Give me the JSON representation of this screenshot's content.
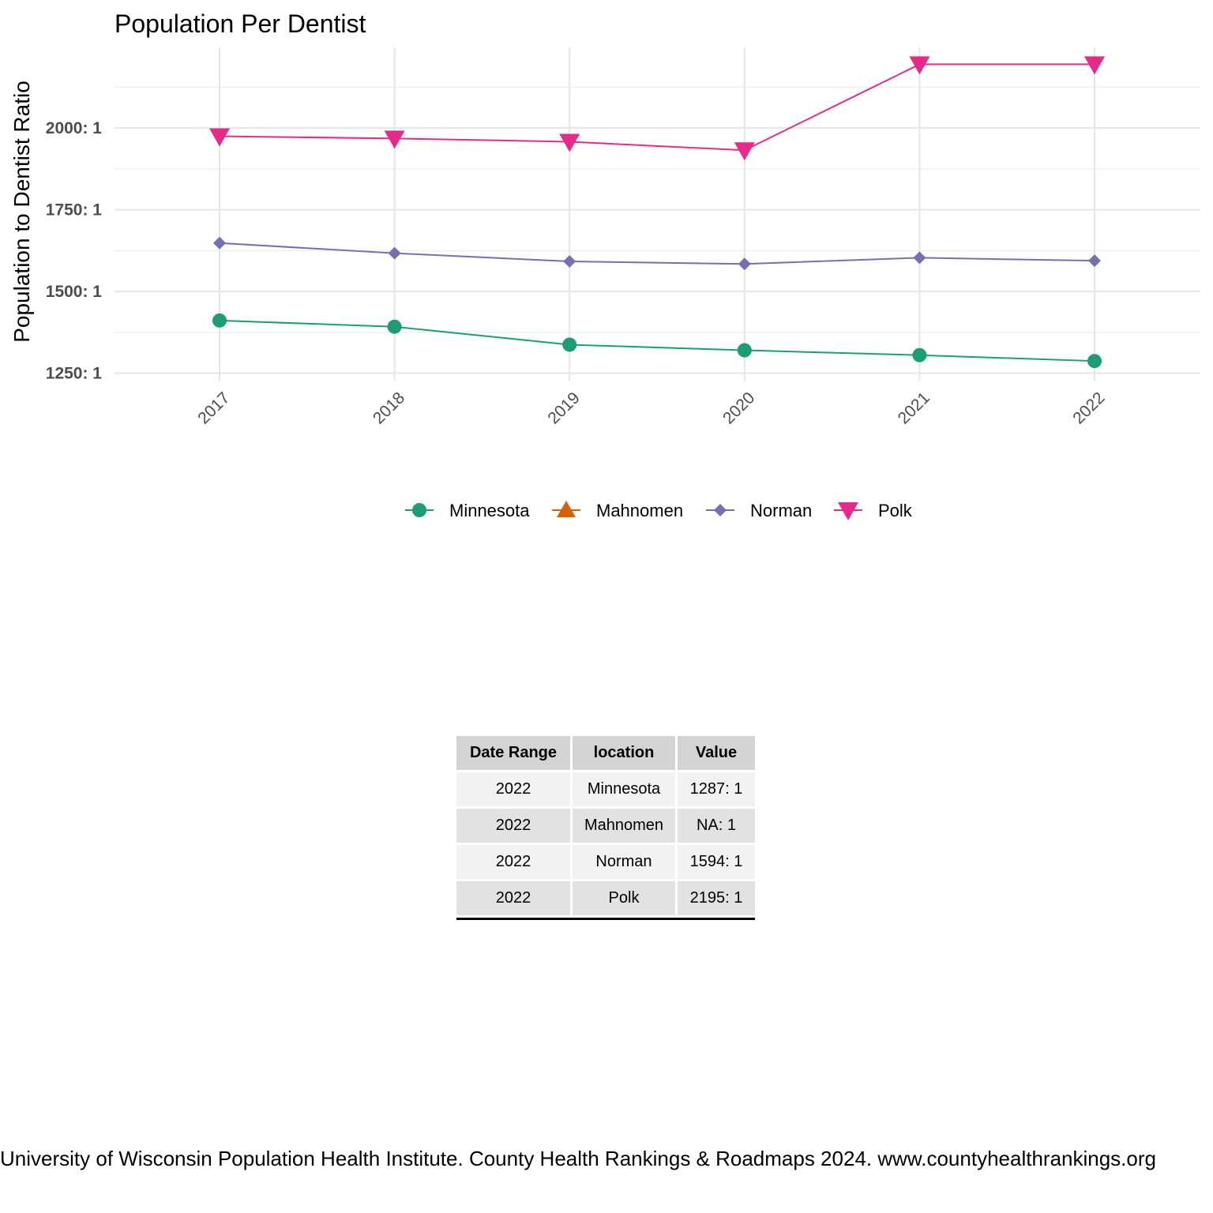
{
  "chart_data": {
    "type": "line",
    "title": "Population Per Dentist",
    "xlabel": "",
    "ylabel": "Population to Dentist Ratio",
    "x": [
      "2017",
      "2018",
      "2019",
      "2020",
      "2021",
      "2022"
    ],
    "yticks": [
      1250,
      1500,
      1750,
      2000
    ],
    "ytick_labels": [
      "1250: 1",
      "1500: 1",
      "1750: 1",
      "2000: 1"
    ],
    "ylim": [
      1240,
      2360
    ],
    "grid": true,
    "legend_position": "bottom",
    "series": [
      {
        "name": "Minnesota",
        "color": "#1b9e77",
        "marker": "circle",
        "values": [
          1411,
          1392,
          1337,
          1320,
          1305,
          1287
        ]
      },
      {
        "name": "Mahnomen",
        "color": "#d95f02",
        "marker": "triangle-up",
        "values": [
          null,
          null,
          null,
          null,
          null,
          null
        ]
      },
      {
        "name": "Norman",
        "color": "#7570b3",
        "marker": "diamond",
        "values": [
          1648,
          1617,
          1592,
          1584,
          1603,
          1594
        ]
      },
      {
        "name": "Polk",
        "color": "#e7298a",
        "marker": "triangle-down",
        "values": [
          1975,
          1968,
          1958,
          1932,
          2195,
          2195
        ]
      }
    ]
  },
  "table": {
    "headers": [
      "Date Range",
      "location",
      "Value"
    ],
    "rows": [
      [
        "2022",
        "Minnesota",
        "1287: 1"
      ],
      [
        "2022",
        "Mahnomen",
        "NA: 1"
      ],
      [
        "2022",
        "Norman",
        "1594: 1"
      ],
      [
        "2022",
        "Polk",
        "2195: 1"
      ]
    ]
  },
  "caption": "University of Wisconsin Population Health Institute. County Health Rankings & Roadmaps 2024. www.countyhealthrankings.org"
}
